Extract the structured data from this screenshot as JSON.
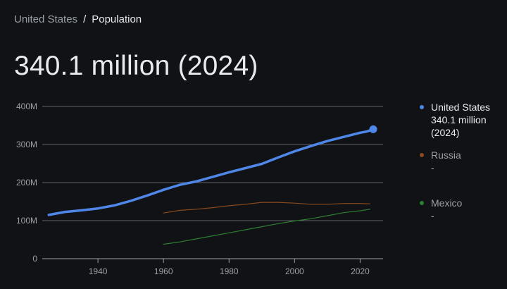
{
  "breadcrumb": {
    "parent": "United States",
    "separator": "/",
    "current": "Population"
  },
  "headline": "340.1 million (2024)",
  "colors": {
    "background": "#111216",
    "grid": "#5f6368",
    "axis_text": "#9aa0a6",
    "us": "#4f87e8",
    "russia": "#8a4a1e",
    "mexico": "#2e7d32"
  },
  "legend": [
    {
      "name": "United States",
      "value": "340.1 million",
      "year": "(2024)",
      "color": "#4f87e8",
      "active": true
    },
    {
      "name": "Russia",
      "value": "-",
      "color": "#8a4a1e",
      "active": false
    },
    {
      "name": "Mexico",
      "value": "-",
      "color": "#2e7d32",
      "active": false
    }
  ],
  "chart_data": {
    "type": "line",
    "xlim": [
      1923,
      2027
    ],
    "ylim": [
      0,
      400
    ],
    "y_ticks": [
      0,
      100,
      200,
      300,
      400
    ],
    "y_tick_labels": [
      "0",
      "100M",
      "200M",
      "300M",
      "400M"
    ],
    "x_ticks": [
      1940,
      1960,
      1980,
      2000,
      2020
    ],
    "x_tick_labels": [
      "1940",
      "1960",
      "1980",
      "2000",
      "2020"
    ],
    "grid": true,
    "legend_position": "right",
    "series": [
      {
        "name": "United States",
        "color": "#4f87e8",
        "x": [
          1925,
          1930,
          1935,
          1940,
          1945,
          1950,
          1955,
          1960,
          1965,
          1970,
          1975,
          1980,
          1985,
          1990,
          1995,
          2000,
          2005,
          2010,
          2015,
          2020,
          2022,
          2024
        ],
        "y": [
          115,
          123,
          127,
          132,
          140,
          152,
          166,
          181,
          194,
          203,
          215,
          227,
          238,
          249,
          266,
          282,
          296,
          309,
          320,
          331,
          334,
          340.1
        ],
        "end_marker": true
      },
      {
        "name": "Russia",
        "color": "#8a4a1e",
        "x": [
          1960,
          1965,
          1970,
          1975,
          1980,
          1985,
          1990,
          1995,
          2000,
          2005,
          2010,
          2015,
          2020,
          2023
        ],
        "y": [
          120,
          127,
          130,
          134,
          139,
          143,
          148,
          148,
          146,
          143,
          143,
          145,
          145,
          144
        ]
      },
      {
        "name": "Mexico",
        "color": "#2e7d32",
        "x": [
          1960,
          1965,
          1970,
          1975,
          1980,
          1985,
          1990,
          1995,
          2000,
          2005,
          2010,
          2015,
          2020,
          2023
        ],
        "y": [
          38,
          44,
          52,
          60,
          68,
          76,
          84,
          92,
          99,
          105,
          113,
          121,
          126,
          130
        ]
      }
    ]
  }
}
